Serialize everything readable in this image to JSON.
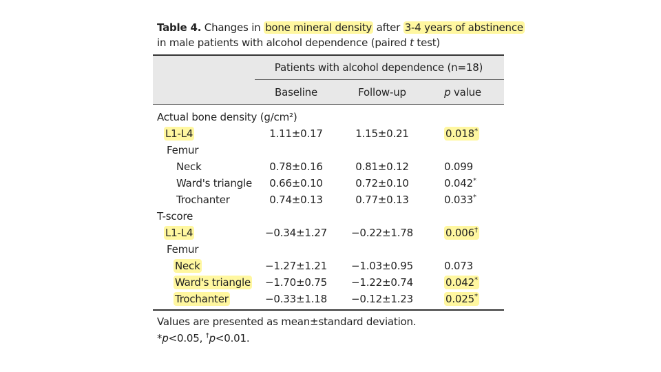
{
  "title": {
    "line1": [
      {
        "text": "Table 4.",
        "bold": true
      },
      {
        "text": " Changes in "
      },
      {
        "text": "bone mineral density",
        "highlight": true
      },
      {
        "text": " after "
      },
      {
        "text": "3-4 years of abstinence",
        "highlight": true
      }
    ],
    "line2": [
      {
        "text": "in male patients with alcohol dependence (paired "
      },
      {
        "text": "t",
        "italic": true
      },
      {
        "text": " test)"
      }
    ]
  },
  "header": {
    "group": "Patients with alcohol dependence (n=18)",
    "columns": [
      "Baseline",
      "Follow-up",
      "p value"
    ]
  },
  "rows": [
    {
      "label": "Actual bone density (g/cm²)",
      "level": 0
    },
    {
      "label": "L1-L4",
      "level": 1,
      "baseline": "1.11±0.17",
      "followup": "1.15±0.21",
      "p": "0.018",
      "mark": "*",
      "highlight_label": true,
      "highlight_p": true
    },
    {
      "label": "Femur",
      "level": 1
    },
    {
      "label": "Neck",
      "level": 2,
      "baseline": "0.78±0.16",
      "followup": "0.81±0.12",
      "p": "0.099"
    },
    {
      "label": "Ward's triangle",
      "level": 2,
      "baseline": "0.66±0.10",
      "followup": "0.72±0.10",
      "p": "0.042",
      "mark": "*"
    },
    {
      "label": "Trochanter",
      "level": 2,
      "baseline": "0.74±0.13",
      "followup": "0.77±0.13",
      "p": "0.033",
      "mark": "*"
    },
    {
      "label": "T-score",
      "level": 0
    },
    {
      "label": "L1-L4",
      "level": 1,
      "baseline": "−0.34±1.27",
      "followup": "−0.22±1.78",
      "p": "0.006",
      "mark": "†",
      "highlight_label": true,
      "highlight_p": true
    },
    {
      "label": "Femur",
      "level": 1
    },
    {
      "label": "Neck",
      "level": 2,
      "baseline": "−1.27±1.21",
      "followup": "−1.03±0.95",
      "p": "0.073",
      "highlight_label": true
    },
    {
      "label": "Ward's triangle",
      "level": 2,
      "baseline": "−1.70±0.75",
      "followup": "−1.22±0.74",
      "p": "0.042",
      "mark": "*",
      "highlight_label": true,
      "highlight_p": true
    },
    {
      "label": "Trochanter",
      "level": 2,
      "baseline": "−0.33±1.18",
      "followup": "−0.12±1.23",
      "p": "0.025",
      "mark": "*",
      "highlight_label": true,
      "highlight_p": true
    }
  ],
  "footnote": {
    "line1": "Values are presented as mean±standard deviation.",
    "line2": [
      {
        "text": "*"
      },
      {
        "text": "p",
        "italic": true
      },
      {
        "text": "<0.05, "
      },
      {
        "text": "†",
        "sup": true
      },
      {
        "text": "p",
        "italic": true
      },
      {
        "text": "<0.01."
      }
    ]
  }
}
